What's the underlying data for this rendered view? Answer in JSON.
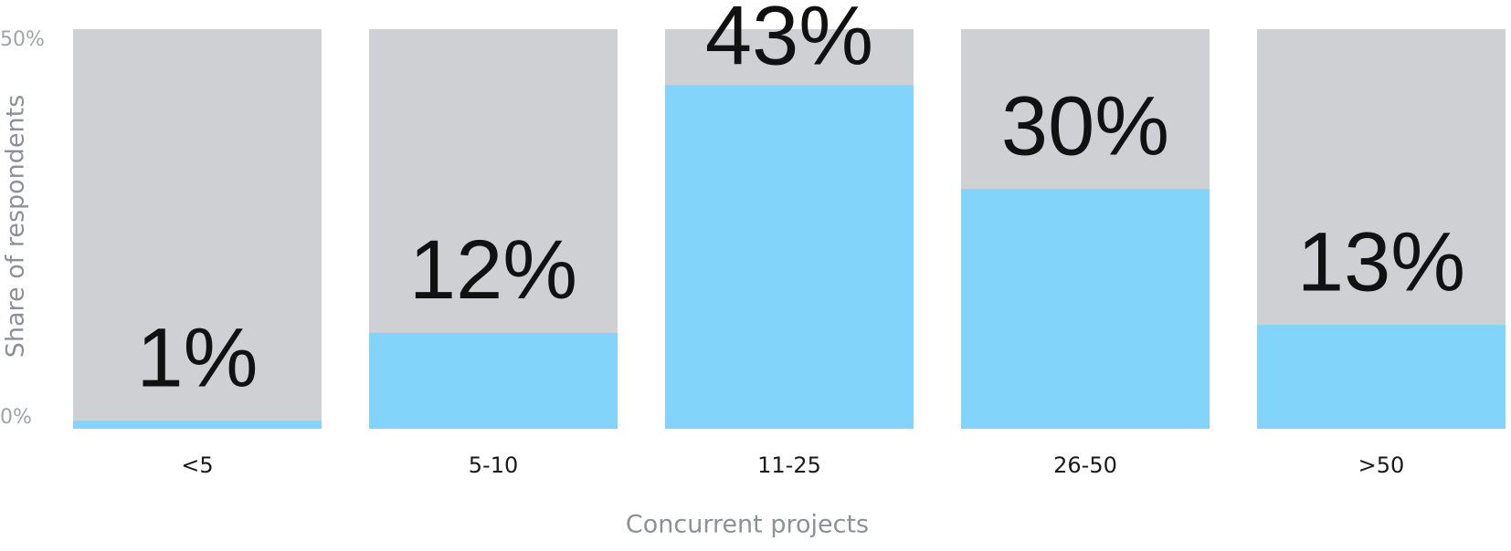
{
  "chart_data": {
    "type": "bar",
    "categories": [
      "<5",
      "5-10",
      "11-25",
      "26-50",
      ">50"
    ],
    "values": [
      1,
      12,
      43,
      30,
      13
    ],
    "value_labels": [
      "1%",
      "12%",
      "43%",
      "30%",
      "13%"
    ],
    "color": "#83d4fa",
    "background_color": "#cfd0d4",
    "ylim": [
      0,
      50
    ],
    "yticks": [
      {
        "value": 0,
        "label": "0%"
      },
      {
        "value": 50,
        "label": "50%"
      }
    ],
    "x_label": "Concurrent projects",
    "y_label": "Share of respondents"
  }
}
